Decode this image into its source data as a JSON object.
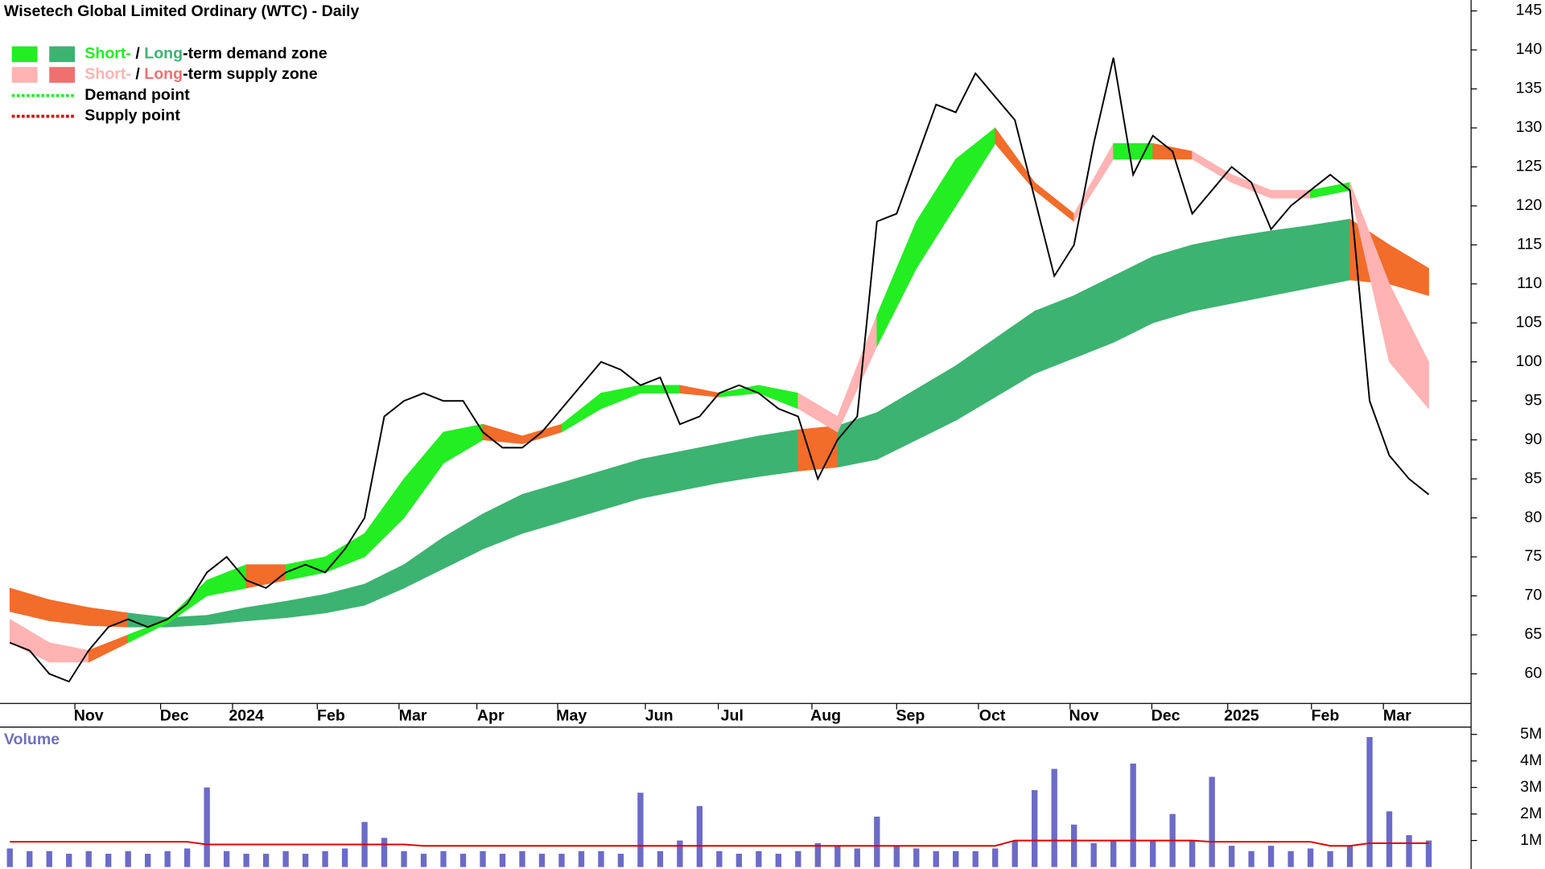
{
  "chart_data": [
    {
      "type": "line",
      "title": "Wisetech Global Limited Ordinary (WTC) - Daily",
      "legend": [
        {
          "parts": [
            "Short-",
            " / ",
            "Long",
            "-term demand zone"
          ],
          "part_colors": [
            "#22ee22",
            "#000000",
            "#3cb371",
            "#000000"
          ],
          "swatches": [
            "#22ee22",
            "#3cb371"
          ]
        },
        {
          "parts": [
            "Short-",
            " / ",
            "Long",
            "-term supply zone"
          ],
          "part_colors": [
            "#ffb3b3",
            "#000000",
            "#f07070",
            "#000000"
          ],
          "swatches": [
            "#ffb3b3",
            "#f07070"
          ]
        },
        {
          "parts": [
            "Demand point"
          ],
          "line_color": "#22ee22"
        },
        {
          "parts": [
            "Supply point"
          ],
          "line_color": "#e00000"
        }
      ],
      "x": [
        0,
        1,
        2,
        3,
        4,
        5,
        6,
        7,
        8,
        9,
        10,
        11,
        12,
        13,
        14,
        15,
        16,
        17,
        18,
        19,
        20,
        21,
        22,
        23,
        24,
        25,
        26,
        27,
        28,
        29,
        30,
        31,
        32,
        33,
        34,
        35,
        36,
        37,
        38,
        39,
        40,
        41,
        42,
        43,
        44,
        45,
        46,
        47,
        48,
        49,
        50,
        51,
        52,
        53,
        54,
        55,
        56,
        57,
        58,
        59,
        60,
        61,
        62,
        63,
        64,
        65,
        66,
        67,
        68,
        69,
        70,
        71,
        72
      ],
      "series": [
        {
          "color": "#000000",
          "values": [
            64,
            63,
            60,
            59,
            63,
            66,
            67,
            66,
            67,
            69,
            73,
            75,
            72,
            71,
            73,
            74,
            73,
            76,
            80,
            93,
            95,
            96,
            95,
            95,
            91,
            89,
            89,
            91,
            94,
            97,
            100,
            99,
            97,
            98,
            92,
            93,
            96,
            97,
            96,
            94,
            93,
            85,
            90,
            93,
            118,
            119,
            126,
            133,
            132,
            137,
            134,
            131,
            121,
            111,
            115,
            128,
            139,
            124,
            129,
            127,
            119,
            122,
            125,
            123,
            117,
            120,
            122,
            124,
            122,
            95,
            88,
            85,
            83
          ]
        }
      ],
      "bands": [
        {
          "x": [
            0,
            2,
            4,
            6,
            8,
            10,
            12,
            14,
            16,
            18,
            20,
            22,
            24,
            26,
            28,
            30,
            32,
            34,
            36,
            38,
            40,
            42,
            44,
            46,
            48,
            50,
            52,
            54,
            56,
            58,
            60,
            62,
            64,
            66,
            68,
            70,
            72
          ],
          "upper": [
            71,
            69.5,
            68.5,
            67.8,
            67.2,
            67.5,
            68.5,
            69.3,
            70.2,
            71.5,
            74,
            77.5,
            80.5,
            83,
            84.5,
            86,
            87.5,
            88.5,
            89.5,
            90.5,
            91.3,
            91.8,
            93.5,
            96.5,
            99.5,
            103,
            106.5,
            108.5,
            111,
            113.5,
            115,
            116,
            116.8,
            117.5,
            118.3,
            115,
            112
          ],
          "lower": [
            68,
            66.8,
            66.2,
            66,
            66,
            66.3,
            66.8,
            67.2,
            67.8,
            68.8,
            71,
            73.5,
            76,
            78,
            79.5,
            81,
            82.5,
            83.5,
            84.5,
            85.3,
            86,
            86.5,
            87.5,
            90,
            92.5,
            95.5,
            98.5,
            100.5,
            102.5,
            105,
            106.5,
            107.5,
            108.5,
            109.5,
            110.5,
            110,
            108.5
          ],
          "colors": [
            "#f26c2a",
            "#f26c2a",
            "#f26c2a",
            "#3cb371",
            "#3cb371",
            "#3cb371",
            "#3cb371",
            "#3cb371",
            "#3cb371",
            "#3cb371",
            "#3cb371",
            "#3cb371",
            "#3cb371",
            "#3cb371",
            "#3cb371",
            "#3cb371",
            "#3cb371",
            "#3cb371",
            "#3cb371",
            "#3cb371",
            "#f26c2a",
            "#3cb371",
            "#3cb371",
            "#3cb371",
            "#3cb371",
            "#3cb371",
            "#3cb371",
            "#3cb371",
            "#3cb371",
            "#3cb371",
            "#3cb371",
            "#3cb371",
            "#3cb371",
            "#3cb371",
            "#f26c2a",
            "#f26c2a"
          ]
        },
        {
          "x": [
            0,
            2,
            4,
            6,
            8,
            10,
            12,
            14,
            16,
            18,
            20,
            22,
            24,
            26,
            28,
            30,
            32,
            34,
            36,
            38,
            40,
            42,
            44,
            46,
            48,
            50,
            52,
            54,
            56,
            58,
            60,
            62,
            64,
            66,
            68,
            70,
            72
          ],
          "upper": [
            67,
            64,
            63,
            65,
            67,
            72,
            74,
            74,
            75,
            78,
            85,
            91,
            92,
            90.5,
            92,
            96,
            97,
            97,
            96,
            97,
            96,
            93,
            106,
            118,
            126,
            130,
            123,
            119,
            128,
            128,
            127,
            124,
            122,
            122,
            123,
            110,
            100
          ],
          "lower": [
            64,
            61.5,
            61.5,
            64,
            66.5,
            70,
            71,
            72,
            73,
            75,
            80,
            87,
            90,
            89.5,
            91,
            94,
            96,
            96,
            95.5,
            96,
            94,
            91,
            102,
            112,
            120,
            128,
            122,
            118,
            126,
            126,
            126,
            123,
            121,
            121,
            122,
            100,
            94
          ],
          "colors": [
            "#ffb3b3",
            "#ffb3b3",
            "#f26c2a",
            "#22ee22",
            "#22ee22",
            "#22ee22",
            "#f26c2a",
            "#22ee22",
            "#22ee22",
            "#22ee22",
            "#22ee22",
            "#22ee22",
            "#f26c2a",
            "#f26c2a",
            "#22ee22",
            "#22ee22",
            "#22ee22",
            "#f26c2a",
            "#22ee22",
            "#22ee22",
            "#ffb3b3",
            "#ffb3b3",
            "#22ee22",
            "#22ee22",
            "#22ee22",
            "#f26c2a",
            "#f26c2a",
            "#ffb3b3",
            "#22ee22",
            "#f26c2a",
            "#ffb3b3",
            "#ffb3b3",
            "#ffb3b3",
            "#22ee22",
            "#ffb3b3",
            "#ffb3b3"
          ]
        }
      ],
      "xlim": [
        -0.5,
        74.15
      ],
      "xticks": [
        {
          "value": 4,
          "label": "Nov"
        },
        {
          "value": 8.35,
          "label": "Dec"
        },
        {
          "value": 12,
          "label": "2024"
        },
        {
          "value": 16.3,
          "label": "Feb"
        },
        {
          "value": 20.45,
          "label": "Mar"
        },
        {
          "value": 24.4,
          "label": "Apr"
        },
        {
          "value": 28.5,
          "label": "May"
        },
        {
          "value": 32.95,
          "label": "Jun"
        },
        {
          "value": 36.65,
          "label": "Jul"
        },
        {
          "value": 41.4,
          "label": "Aug"
        },
        {
          "value": 45.7,
          "label": "Sep"
        },
        {
          "value": 49.85,
          "label": "Oct"
        },
        {
          "value": 54.5,
          "label": "Nov"
        },
        {
          "value": 58.65,
          "label": "Dec"
        },
        {
          "value": 62.5,
          "label": "2025"
        },
        {
          "value": 66.75,
          "label": "Feb"
        },
        {
          "value": 70.4,
          "label": "Mar"
        }
      ],
      "ylim": [
        56.2,
        146.4
      ],
      "yticks": [
        60,
        65,
        70,
        75,
        80,
        85,
        90,
        95,
        100,
        105,
        110,
        115,
        120,
        125,
        130,
        135,
        140,
        145
      ]
    },
    {
      "type": "bar",
      "title": "Volume",
      "color": "#6b6bc8",
      "x": [
        0,
        1,
        2,
        3,
        4,
        5,
        6,
        7,
        8,
        9,
        10,
        11,
        12,
        13,
        14,
        15,
        16,
        17,
        18,
        19,
        20,
        21,
        22,
        23,
        24,
        25,
        26,
        27,
        28,
        29,
        30,
        31,
        32,
        33,
        34,
        35,
        36,
        37,
        38,
        39,
        40,
        41,
        42,
        43,
        44,
        45,
        46,
        47,
        48,
        49,
        50,
        51,
        52,
        53,
        54,
        55,
        56,
        57,
        58,
        59,
        60,
        61,
        62,
        63,
        64,
        65,
        66,
        67,
        68,
        69,
        70,
        71,
        72
      ],
      "values": [
        0.7,
        0.6,
        0.6,
        0.5,
        0.6,
        0.5,
        0.6,
        0.5,
        0.6,
        0.7,
        3.0,
        0.6,
        0.5,
        0.5,
        0.6,
        0.5,
        0.6,
        0.7,
        1.7,
        1.1,
        0.6,
        0.5,
        0.6,
        0.5,
        0.6,
        0.5,
        0.6,
        0.5,
        0.5,
        0.6,
        0.6,
        0.5,
        2.8,
        0.6,
        1.0,
        2.3,
        0.6,
        0.5,
        0.6,
        0.5,
        0.6,
        0.9,
        0.8,
        0.7,
        1.9,
        0.8,
        0.7,
        0.6,
        0.6,
        0.6,
        0.7,
        1.0,
        2.9,
        3.7,
        1.6,
        0.9,
        1.0,
        3.9,
        1.0,
        2.0,
        1.0,
        3.4,
        0.8,
        0.6,
        0.8,
        0.6,
        0.7,
        0.6,
        0.8,
        4.9,
        2.1,
        1.2,
        1.0
      ],
      "average": {
        "color": "#e00000",
        "values": [
          0.95,
          0.95,
          0.95,
          0.95,
          0.95,
          0.95,
          0.95,
          0.95,
          0.95,
          0.95,
          0.85,
          0.85,
          0.85,
          0.85,
          0.85,
          0.85,
          0.85,
          0.85,
          0.85,
          0.85,
          0.85,
          0.8,
          0.8,
          0.8,
          0.8,
          0.8,
          0.8,
          0.8,
          0.8,
          0.8,
          0.8,
          0.8,
          0.8,
          0.8,
          0.8,
          0.8,
          0.8,
          0.8,
          0.8,
          0.8,
          0.8,
          0.8,
          0.8,
          0.8,
          0.8,
          0.8,
          0.8,
          0.8,
          0.8,
          0.8,
          0.8,
          1.0,
          1.0,
          1.0,
          1.0,
          1.0,
          1.0,
          1.0,
          1.0,
          1.0,
          1.0,
          0.95,
          0.95,
          0.95,
          0.95,
          0.95,
          0.95,
          0.8,
          0.8,
          0.9,
          0.9,
          0.9,
          0.9
        ]
      },
      "ylim": [
        0,
        5.2
      ],
      "yticks": [
        {
          "value": 1,
          "label": "1M"
        },
        {
          "value": 2,
          "label": "2M"
        },
        {
          "value": 3,
          "label": "3M"
        },
        {
          "value": 4,
          "label": "4M"
        },
        {
          "value": 5,
          "label": "5M"
        }
      ]
    }
  ]
}
